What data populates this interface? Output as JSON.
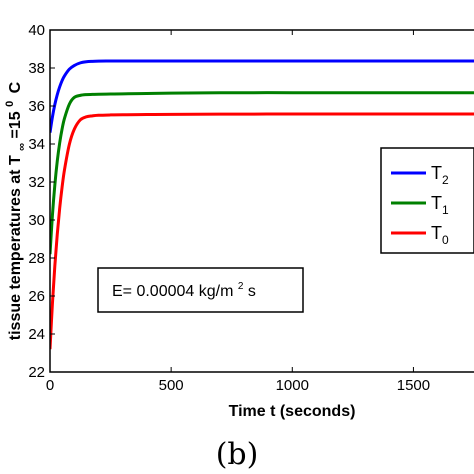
{
  "chart_data": {
    "type": "line",
    "xlabel": "Time t (seconds)",
    "ylabel_prefix": "tissue temperatures at T",
    "ylabel_sub": "∞",
    "ylabel_suffix": "=15",
    "ylabel_sup": "0",
    "ylabel_unit": "C",
    "xlim": [
      0,
      1750
    ],
    "ylim": [
      22,
      40
    ],
    "xticks": [
      0,
      500,
      1000,
      1500
    ],
    "yticks": [
      22,
      24,
      26,
      28,
      30,
      32,
      34,
      36,
      38,
      40
    ],
    "x": [
      0,
      10,
      20,
      30,
      40,
      50,
      60,
      80,
      100,
      125,
      150,
      175,
      200,
      250,
      300,
      400,
      500,
      700,
      1000,
      1300,
      1750
    ],
    "series": [
      {
        "name_base": "T",
        "name_sub": "2",
        "color": "#0000ff",
        "values": [
          34.6,
          35.42,
          36.08,
          36.6,
          37.01,
          37.34,
          37.59,
          37.94,
          38.13,
          38.27,
          38.33,
          38.35,
          38.36,
          38.37,
          38.37,
          38.37,
          38.37,
          38.37,
          38.37,
          38.37,
          38.37
        ]
      },
      {
        "name_base": "T",
        "name_sub": "1",
        "color": "#008000",
        "values": [
          28.2,
          30.25,
          31.85,
          33.1,
          34.06,
          34.8,
          35.36,
          36.1,
          36.45,
          36.56,
          36.6,
          36.61,
          36.62,
          36.63,
          36.64,
          36.66,
          36.68,
          36.7,
          36.7,
          36.7,
          36.7
        ]
      },
      {
        "name_base": "T",
        "name_sub": "0",
        "color": "#ff0000",
        "values": [
          23.2,
          25.6,
          27.6,
          29.25,
          30.62,
          31.74,
          32.66,
          33.99,
          34.77,
          35.27,
          35.43,
          35.48,
          35.51,
          35.53,
          35.54,
          35.55,
          35.56,
          35.57,
          35.58,
          35.58,
          35.58
        ]
      }
    ],
    "legend_position": "right",
    "annotation": {
      "prefix": "E= 0.00004 kg/m",
      "sup": "2",
      "suffix": "s"
    },
    "caption": "(b)"
  }
}
